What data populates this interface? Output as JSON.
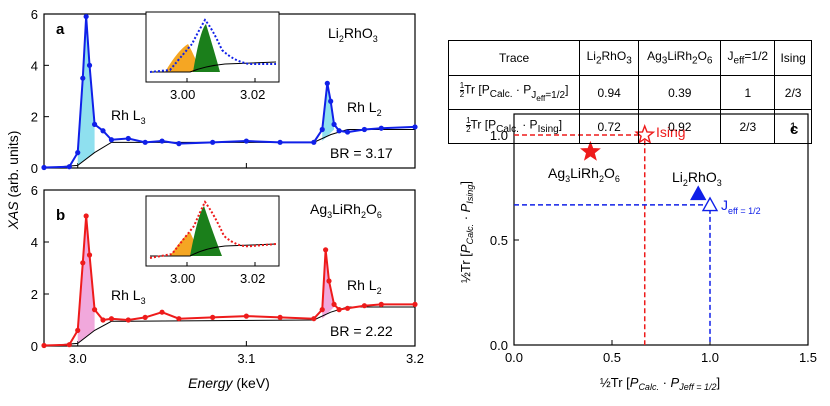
{
  "colors": {
    "li": "#1020e8",
    "ag": "#ee1b1b",
    "fill_li": "#5fd3e8",
    "fill_ag": "#ec8bd0",
    "green": "#1b7f1b",
    "orange": "#f5a623"
  },
  "panel_a": {
    "letter": "a",
    "sample_parts": [
      "Li",
      "2",
      "RhO",
      "3"
    ],
    "l3_label": "Rh L",
    "l3_sub": "3",
    "l2_label": "Rh L",
    "l2_sub": "2",
    "br": "BR = 3.17",
    "inset_ticks": [
      "3.00",
      "3.02"
    ]
  },
  "panel_b": {
    "letter": "b",
    "sample_parts": [
      "Ag",
      "3",
      "LiRh",
      "2",
      "O",
      "6"
    ],
    "l3_label": "Rh L",
    "l3_sub": "3",
    "l2_label": "Rh L",
    "l2_sub": "2",
    "br": "BR = 2.22",
    "inset_ticks": [
      "3.00",
      "3.02"
    ]
  },
  "panel_c": {
    "letter": "c",
    "ising_label": "Ising",
    "jeff_label": "J",
    "jeff_sub": "eff = 1/2",
    "li_parts": [
      "Li",
      "2",
      "RhO",
      "3"
    ],
    "ag_parts": [
      "Ag",
      "3",
      "LiRh",
      "2",
      "O",
      "6"
    ]
  },
  "xas_axes": {
    "ylabel_italic": "XAS",
    "ylabel_rest": " (arb. units)",
    "xlabel": "Energy",
    "xlabel_unit": " (keV)",
    "xticks": [
      "3.0",
      "3.1",
      "3.2"
    ],
    "yticks": [
      "0",
      "2",
      "4",
      "6"
    ]
  },
  "table": {
    "headers": [
      "Trace",
      "Li2RhO3",
      "Ag3LiRh2O6",
      "Jeff=1/2",
      "Ising"
    ],
    "rows": [
      {
        "label": "Tr [PCalc. · PJeff=1/2]",
        "values": [
          "0.94",
          "0.39",
          "1",
          "2/3"
        ]
      },
      {
        "label": "Tr [PCalc. · PIsing]",
        "values": [
          "0.72",
          "0.92",
          "2/3",
          "1"
        ]
      }
    ]
  },
  "chart_data": [
    {
      "type": "line",
      "title": "",
      "xlabel": "Energy (keV)",
      "ylabel": "XAS (arb. units)",
      "xlim": [
        2.98,
        3.2
      ],
      "ylim": [
        0,
        6
      ],
      "series": [
        {
          "name": "Li2RhO3",
          "x": [
            2.98,
            2.995,
            3.0,
            3.003,
            3.005,
            3.007,
            3.01,
            3.015,
            3.02,
            3.03,
            3.04,
            3.05,
            3.06,
            3.08,
            3.1,
            3.12,
            3.14,
            3.145,
            3.148,
            3.15,
            3.152,
            3.155,
            3.16,
            3.17,
            3.18,
            3.2
          ],
          "y": [
            0.02,
            0.05,
            0.6,
            3.5,
            5.9,
            4.0,
            1.7,
            1.45,
            1.1,
            1.15,
            1.0,
            1.05,
            0.95,
            1.0,
            1.05,
            1.0,
            1.0,
            1.5,
            3.3,
            2.6,
            1.7,
            1.45,
            1.4,
            1.5,
            1.55,
            1.6
          ]
        },
        {
          "name": "step",
          "x": [
            2.98,
            3.0,
            3.01,
            3.02,
            3.14,
            3.15,
            3.16,
            3.2
          ],
          "y": [
            0,
            0.1,
            0.6,
            1.0,
            1.0,
            1.3,
            1.5,
            1.5
          ]
        }
      ],
      "inset": {
        "xlim": [
          2.99,
          3.02
        ],
        "xticks": [
          "3.00",
          "3.02"
        ]
      },
      "annotations": [
        "Rh L3",
        "Rh L2",
        "BR = 3.17"
      ]
    },
    {
      "type": "line",
      "title": "",
      "xlabel": "Energy (keV)",
      "ylabel": "XAS (arb. units)",
      "xlim": [
        2.98,
        3.2
      ],
      "ylim": [
        0,
        6
      ],
      "series": [
        {
          "name": "Ag3LiRh2O6",
          "x": [
            2.98,
            2.995,
            3.0,
            3.003,
            3.005,
            3.007,
            3.01,
            3.015,
            3.02,
            3.03,
            3.04,
            3.05,
            3.06,
            3.08,
            3.1,
            3.12,
            3.14,
            3.145,
            3.147,
            3.149,
            3.152,
            3.155,
            3.16,
            3.17,
            3.18,
            3.2
          ],
          "y": [
            0.02,
            0.05,
            0.6,
            3.2,
            5.0,
            3.5,
            1.4,
            1.0,
            1.05,
            1.0,
            1.1,
            1.3,
            1.05,
            1.1,
            1.15,
            1.1,
            1.05,
            1.4,
            3.7,
            2.5,
            1.6,
            1.4,
            1.45,
            1.55,
            1.6,
            1.6
          ]
        },
        {
          "name": "step",
          "x": [
            2.98,
            3.0,
            3.01,
            3.02,
            3.14,
            3.15,
            3.16,
            3.2
          ],
          "y": [
            0,
            0.1,
            0.6,
            0.95,
            1.0,
            1.3,
            1.5,
            1.5
          ]
        }
      ],
      "inset": {
        "xlim": [
          2.99,
          3.02
        ],
        "xticks": [
          "3.00",
          "3.02"
        ]
      },
      "annotations": [
        "Rh L3",
        "Rh L2",
        "BR = 2.22"
      ]
    },
    {
      "type": "scatter",
      "title": "",
      "xlabel": "1/2 Tr [PCalc. · PJeff=1/2]",
      "ylabel": "1/2 Tr [PCalc. · PIsing]",
      "xlim": [
        0,
        1.5
      ],
      "ylim": [
        0,
        1.1
      ],
      "xticks": [
        "0.0",
        "0.5",
        "1.0",
        "1.5"
      ],
      "yticks": [
        "0.0",
        "0.5",
        "1.0"
      ],
      "points": [
        {
          "name": "Ising",
          "x": 0.667,
          "y": 1.0,
          "marker": "open-star",
          "color": "#ee1b1b"
        },
        {
          "name": "Ag3LiRh2O6",
          "x": 0.39,
          "y": 0.92,
          "marker": "star",
          "color": "#ee1b1b"
        },
        {
          "name": "Li2RhO3",
          "x": 0.94,
          "y": 0.72,
          "marker": "triangle",
          "color": "#1020e8"
        },
        {
          "name": "Jeff=1/2",
          "x": 1.0,
          "y": 0.667,
          "marker": "open-triangle",
          "color": "#1020e8"
        }
      ]
    }
  ]
}
